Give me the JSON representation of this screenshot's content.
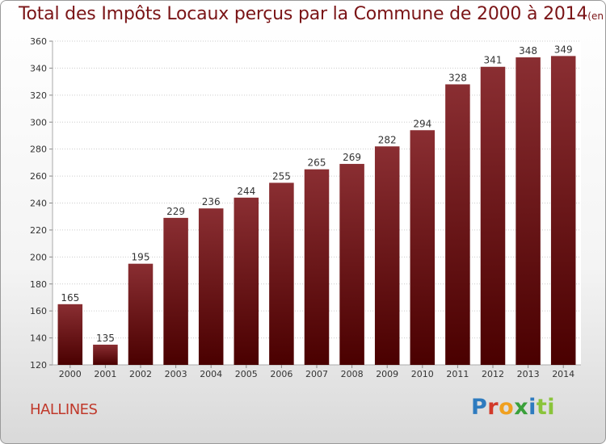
{
  "header": {
    "title": "Total des Impôts Locaux perçus par la Commune de 2000 à 2014",
    "unit": "(en milliers d'€)"
  },
  "footer": {
    "commune": "HALLINES",
    "brand": [
      "P",
      "r",
      "o",
      "x",
      "i",
      "ti"
    ]
  },
  "colors": {
    "bar_top": "#8a2e32",
    "bar_bottom": "#4a0000",
    "title": "#7a1416",
    "commune": "#c0392b"
  },
  "chart_data": {
    "type": "bar",
    "title": "Total des Impôts Locaux perçus par la Commune de 2000 à 2014",
    "categories": [
      "2000",
      "2001",
      "2002",
      "2003",
      "2004",
      "2005",
      "2006",
      "2007",
      "2008",
      "2009",
      "2010",
      "2011",
      "2012",
      "2013",
      "2014"
    ],
    "values": [
      165,
      135,
      195,
      229,
      236,
      244,
      255,
      265,
      269,
      282,
      294,
      328,
      341,
      348,
      349
    ],
    "ylim": [
      120,
      360
    ],
    "yticks": [
      120,
      140,
      160,
      180,
      200,
      220,
      240,
      260,
      280,
      300,
      320,
      340,
      360
    ],
    "grid": true,
    "xlabel": "",
    "ylabel": ""
  }
}
